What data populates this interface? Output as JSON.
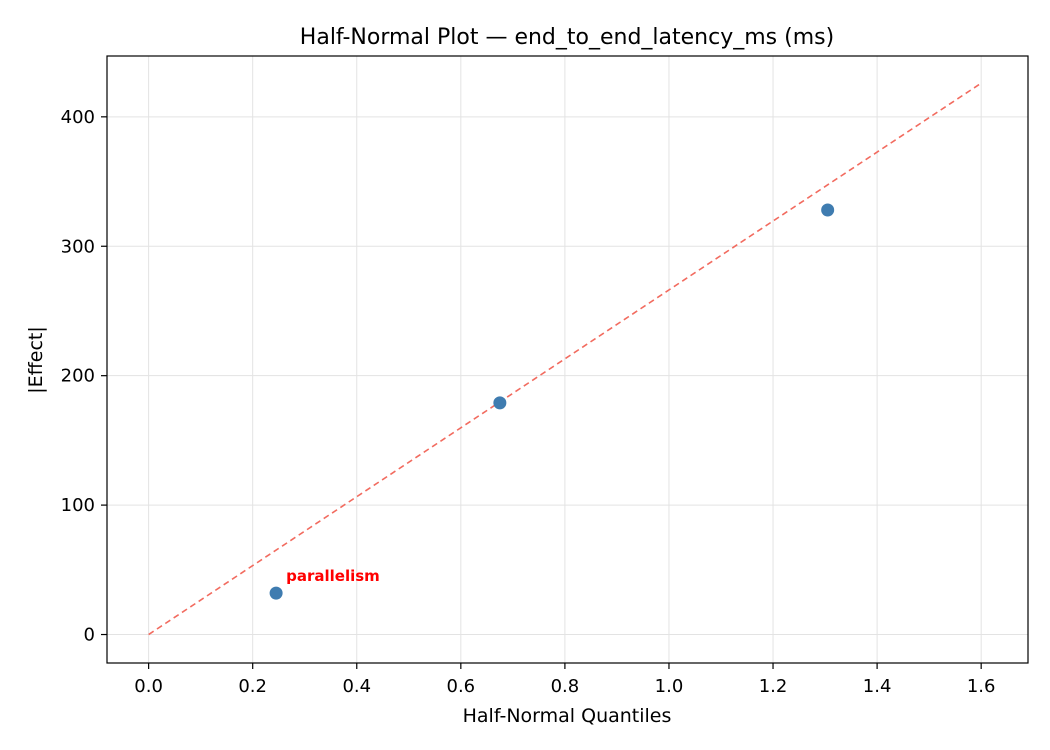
{
  "chart_data": {
    "type": "scatter",
    "title": "Half-Normal Plot — end_to_end_latency_ms (ms)",
    "xlabel": "Half-Normal Quantiles",
    "ylabel": "|Effect|",
    "xlim": [
      -0.08,
      1.69
    ],
    "ylim": [
      -22,
      447
    ],
    "xticks": [
      "0.0",
      "0.2",
      "0.4",
      "0.6",
      "0.8",
      "1.0",
      "1.2",
      "1.4",
      "1.6"
    ],
    "yticks": [
      "0",
      "100",
      "200",
      "300",
      "400"
    ],
    "grid": true,
    "points": [
      {
        "x": 0.245,
        "y": 32,
        "label": "parallelism"
      },
      {
        "x": 0.675,
        "y": 179,
        "label": ""
      },
      {
        "x": 1.305,
        "y": 328,
        "label": ""
      }
    ],
    "reference_line": {
      "x": [
        0.0,
        1.6
      ],
      "y": [
        0,
        426
      ],
      "style": "dashed"
    },
    "colors": {
      "points": "#3f7cb0",
      "reference_line": "#f26b5f",
      "annotation": "#ff0000",
      "grid": "#e3e3e3"
    }
  }
}
